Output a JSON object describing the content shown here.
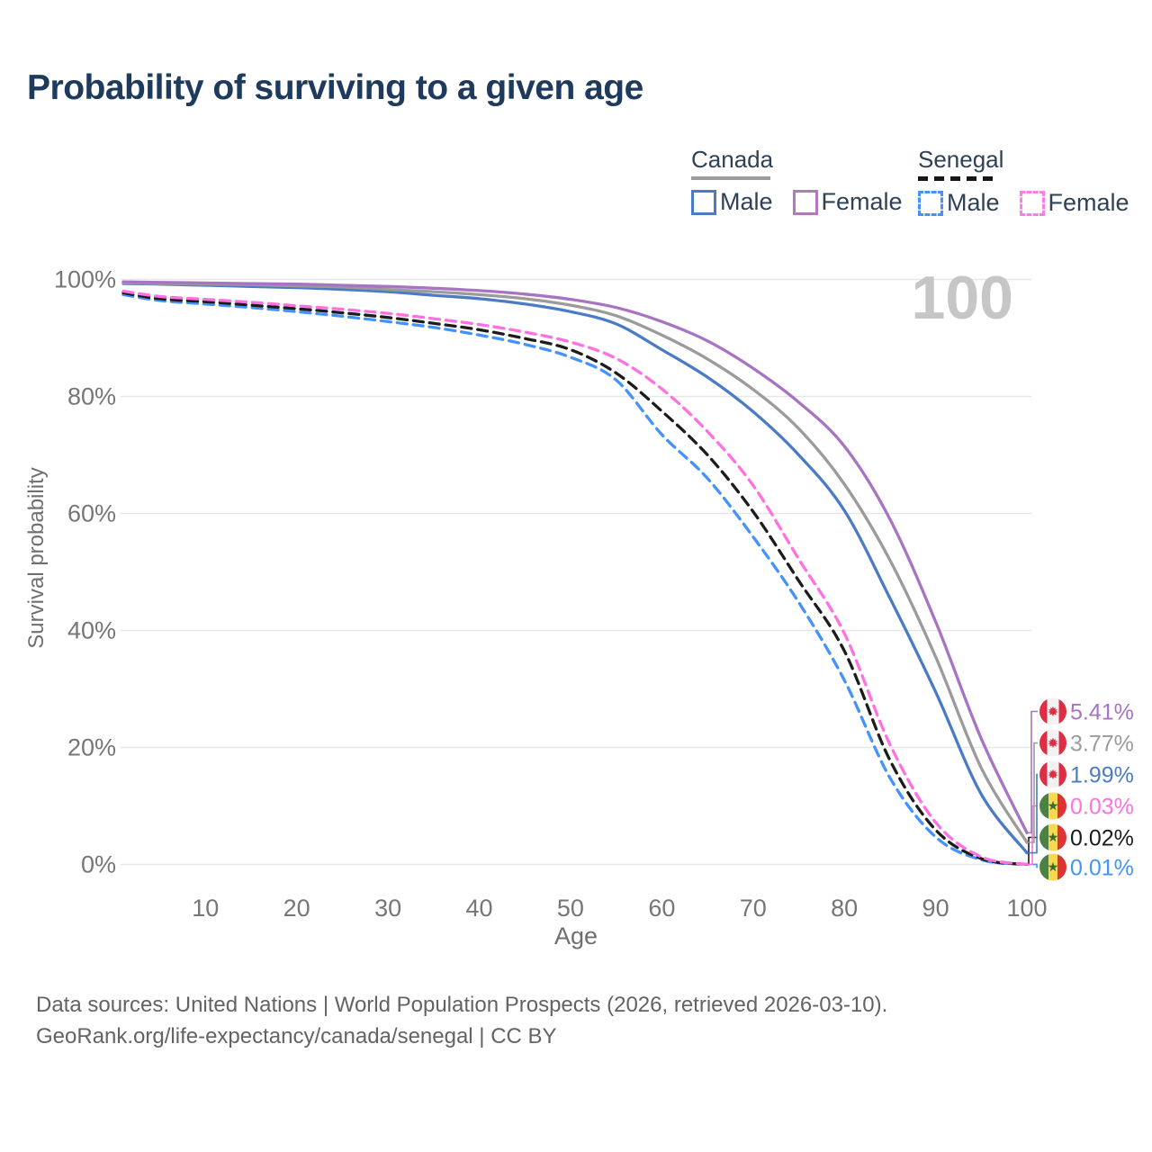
{
  "page": {
    "title": "Probability of surviving to a given age",
    "watermark": "100",
    "caption_line1": "Data sources: United Nations | World Population Prospects (2026, retrieved 2026-03-10).",
    "caption_line2": "GeoRank.org/life-expectancy/canada/senegal | CC BY"
  },
  "legend": {
    "groups": [
      {
        "country": "Canada",
        "line_style": "solid",
        "line_color": "#9c9c9c",
        "items": [
          {
            "label": "Male",
            "color": "#4b7bc4",
            "style": "solid"
          },
          {
            "label": "Female",
            "color": "#b478be",
            "style": "solid"
          }
        ]
      },
      {
        "country": "Senegal",
        "line_style": "dashed",
        "line_color": "#161616",
        "items": [
          {
            "label": "Male",
            "color": "#4493fd",
            "style": "dashed"
          },
          {
            "label": "Female",
            "color": "#ff7ce0",
            "style": "dashed"
          }
        ]
      }
    ]
  },
  "chart_data": {
    "type": "line",
    "title": "Probability of surviving to a given age",
    "xlabel": "Age",
    "ylabel": "Survival probability",
    "xlim": [
      1,
      100
    ],
    "ylim": [
      0,
      100
    ],
    "xticks": [
      10,
      20,
      30,
      40,
      50,
      60,
      70,
      80,
      90,
      100
    ],
    "yticks_percent": [
      0,
      20,
      40,
      60,
      80,
      100
    ],
    "grid": "horizontal",
    "legend_position": "top-right",
    "x": [
      1,
      5,
      10,
      15,
      20,
      25,
      30,
      35,
      40,
      45,
      50,
      55,
      60,
      65,
      70,
      75,
      80,
      85,
      90,
      95,
      100
    ],
    "series": [
      {
        "id": "senegal-male",
        "country": "Senegal",
        "sex": "Male",
        "color": "#4493fd",
        "dash": "dashed",
        "flag": "senegal",
        "slot": 5,
        "end_label": "0.01%",
        "values": [
          97.4,
          96.4,
          95.8,
          95.2,
          94.5,
          93.7,
          92.8,
          91.8,
          90.5,
          88.9,
          86.7,
          82.8,
          73.5,
          66.0,
          56.0,
          44.8,
          31.5,
          14.8,
          4.7,
          0.8,
          0.01
        ]
      },
      {
        "id": "senegal-both",
        "country": "Senegal",
        "sex": "Both sexes",
        "color": "#1c1c1c",
        "dash": "dashed",
        "flag": "senegal",
        "slot": 4,
        "end_label": "0.02%",
        "values": [
          97.7,
          96.7,
          96.2,
          95.6,
          95.0,
          94.3,
          93.5,
          92.5,
          91.4,
          89.9,
          88.0,
          84.0,
          77.5,
          70.0,
          60.3,
          48.5,
          36.5,
          17.8,
          5.9,
          1.0,
          0.02
        ]
      },
      {
        "id": "senegal-female",
        "country": "Senegal",
        "sex": "Female",
        "color": "#ff70e0",
        "dash": "dashed",
        "flag": "senegal",
        "slot": 3,
        "end_label": "0.03%",
        "values": [
          98.0,
          97.1,
          96.6,
          96.1,
          95.5,
          94.9,
          94.2,
          93.3,
          92.3,
          91.0,
          89.3,
          86.5,
          81.3,
          74.0,
          64.8,
          52.2,
          39.5,
          20.5,
          7.2,
          1.3,
          0.03
        ]
      },
      {
        "id": "canada-male",
        "country": "Canada",
        "sex": "Male",
        "color": "#4b7bc4",
        "dash": "solid",
        "flag": "canada",
        "slot": 2,
        "end_label": "1.99%",
        "values": [
          99.3,
          99.2,
          99.0,
          98.8,
          98.6,
          98.3,
          97.9,
          97.3,
          96.7,
          95.8,
          94.5,
          92.4,
          88.0,
          83.3,
          77.4,
          70.0,
          60.5,
          45.5,
          29.5,
          12.0,
          1.99
        ]
      },
      {
        "id": "canada-both",
        "country": "Canada",
        "sex": "Both sexes",
        "color": "#9b9b9b",
        "dash": "solid",
        "flag": "canada",
        "slot": 1,
        "end_label": "3.77%",
        "values": [
          99.4,
          99.3,
          99.2,
          99.1,
          98.9,
          98.7,
          98.3,
          97.9,
          97.4,
          96.7,
          95.6,
          93.8,
          90.5,
          86.4,
          81.2,
          74.5,
          65.0,
          52.0,
          35.5,
          16.5,
          3.77
        ]
      },
      {
        "id": "canada-female",
        "country": "Canada",
        "sex": "Female",
        "color": "#a873c2",
        "dash": "solid",
        "flag": "canada",
        "slot": 0,
        "end_label": "5.41%",
        "values": [
          99.6,
          99.5,
          99.4,
          99.3,
          99.2,
          99.0,
          98.8,
          98.5,
          98.1,
          97.5,
          96.6,
          95.2,
          92.8,
          89.5,
          84.8,
          79.0,
          71.5,
          59.0,
          41.5,
          21.5,
          5.41
        ]
      }
    ]
  }
}
